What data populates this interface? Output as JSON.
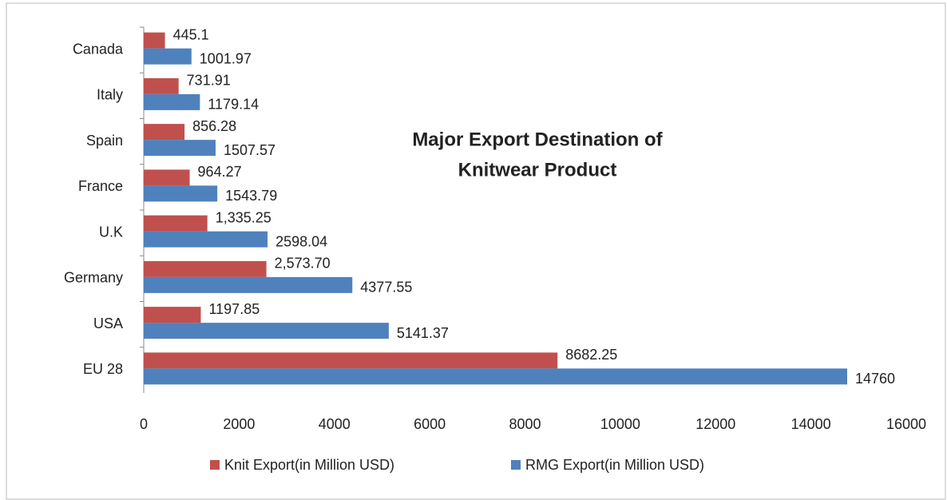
{
  "chart_data": {
    "type": "bar",
    "orientation": "horizontal",
    "title": [
      "Major Export Destination of",
      "Knitwear Product"
    ],
    "categories": [
      "Canada",
      "Italy",
      "Spain",
      "France",
      "U.K",
      "Germany",
      "USA",
      "EU 28"
    ],
    "series": [
      {
        "name": "Knit Export(in Million USD)",
        "color": "#c0504d",
        "values": [
          445.1,
          731.91,
          856.28,
          964.27,
          1335.25,
          2573.7,
          1197.85,
          8682.25
        ],
        "value_labels": [
          "445.1",
          "731.91",
          "856.28",
          "964.27",
          "1,335.25",
          "2,573.70",
          "1197.85",
          "8682.25"
        ]
      },
      {
        "name": "RMG Export(in Million USD)",
        "color": "#4f81bd",
        "values": [
          1001.97,
          1179.14,
          1507.57,
          1543.79,
          2598.04,
          4377.55,
          5141.37,
          14760
        ],
        "value_labels": [
          "1001.97",
          "1179.14",
          "1507.57",
          "1543.79",
          "2598.04",
          "4377.55",
          "5141.37",
          "14760"
        ]
      }
    ],
    "xlim": [
      0,
      16000
    ],
    "xticks": [
      0,
      2000,
      4000,
      6000,
      8000,
      10000,
      12000,
      14000,
      16000
    ],
    "legend": "bottom"
  }
}
